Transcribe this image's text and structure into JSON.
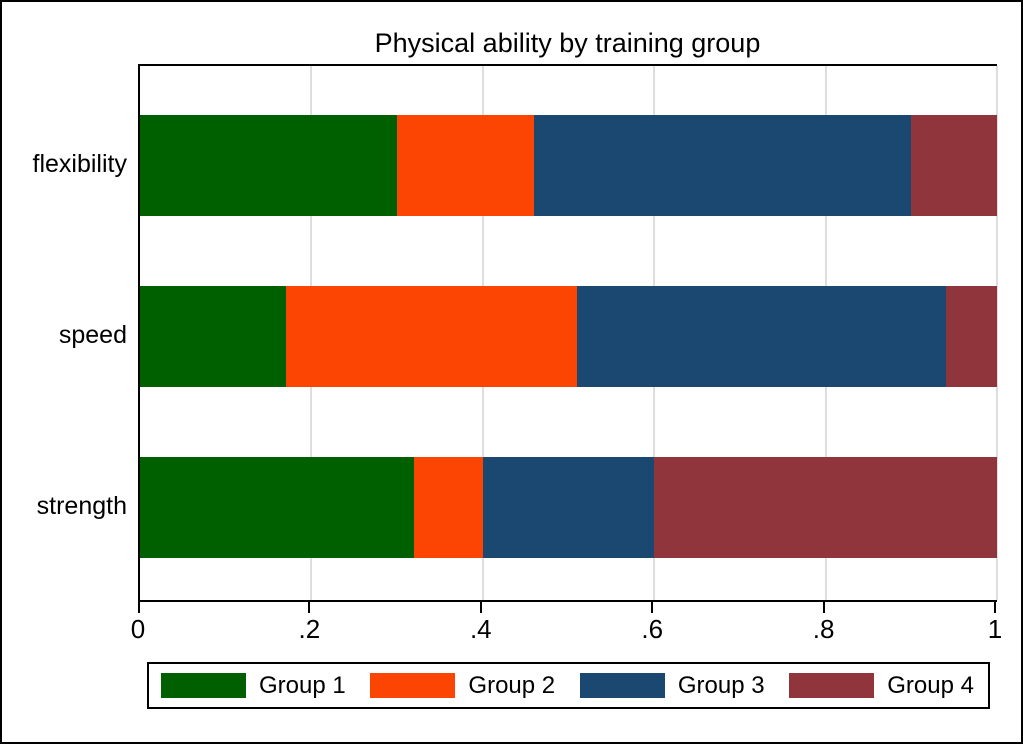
{
  "chart_data": {
    "type": "bar",
    "orientation": "horizontal",
    "stacked": true,
    "title": "Physical ability by training group",
    "categories": [
      "flexibility",
      "speed",
      "strength"
    ],
    "series": [
      {
        "name": "Group 1",
        "color": "#006000",
        "values": [
          0.3,
          0.17,
          0.32
        ]
      },
      {
        "name": "Group 2",
        "color": "#FC4502",
        "values": [
          0.16,
          0.34,
          0.08
        ]
      },
      {
        "name": "Group 3",
        "color": "#1B4870",
        "values": [
          0.44,
          0.43,
          0.2
        ]
      },
      {
        "name": "Group 4",
        "color": "#90353B",
        "values": [
          0.1,
          0.06,
          0.4
        ]
      }
    ],
    "xlim": [
      0,
      1
    ],
    "x_ticks": [
      {
        "value": 0,
        "label": "0"
      },
      {
        "value": 0.2,
        "label": ".2"
      },
      {
        "value": 0.4,
        "label": ".4"
      },
      {
        "value": 0.6,
        "label": ".6"
      },
      {
        "value": 0.8,
        "label": ".8"
      },
      {
        "value": 1,
        "label": "1"
      }
    ],
    "grid": "vertical-gridlines-on",
    "legend_position": "bottom"
  },
  "colors": {
    "gridline": "#DEDEDE",
    "axis": "#000000",
    "background": "#FFFFFF",
    "text": "#000000"
  }
}
